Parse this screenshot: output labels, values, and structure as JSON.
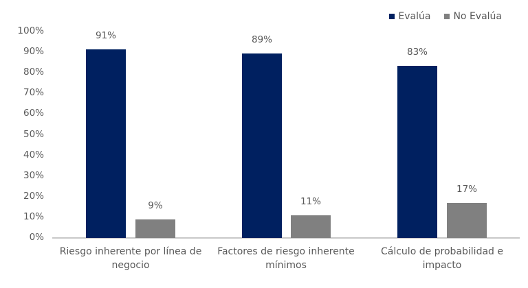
{
  "chart_data": {
    "type": "bar",
    "title": "",
    "xlabel": "",
    "ylabel": "",
    "ylim": [
      0,
      100
    ],
    "grid": false,
    "legend_position": "top-right",
    "yticks": [
      "0%",
      "10%",
      "20%",
      "30%",
      "40%",
      "50%",
      "60%",
      "70%",
      "80%",
      "90%",
      "100%"
    ],
    "categories": [
      "Riesgo inherente por línea de negocio",
      "Factores de riesgo inherente mínimos",
      "Cálculo de probabilidad e impacto"
    ],
    "series": [
      {
        "name": "Evalúa",
        "color": "#002060",
        "values": [
          91,
          89,
          83
        ],
        "labels": [
          "91%",
          "89%",
          "83%"
        ]
      },
      {
        "name": "No Evalúa",
        "color": "#808080",
        "values": [
          9,
          11,
          17
        ],
        "labels": [
          "9%",
          "11%",
          "17%"
        ]
      }
    ]
  },
  "legend": {
    "items": [
      {
        "label": "Evalúa",
        "color": "#002060"
      },
      {
        "label": "No Evalúa",
        "color": "#808080"
      }
    ]
  },
  "categories_display": [
    {
      "line1": "Riesgo inherente por línea de",
      "line2": "negocio"
    },
    {
      "line1": "Factores de riesgo inherente",
      "line2": "mínimos"
    },
    {
      "line1": "Cálculo de probabilidad e",
      "line2": "impacto"
    }
  ]
}
